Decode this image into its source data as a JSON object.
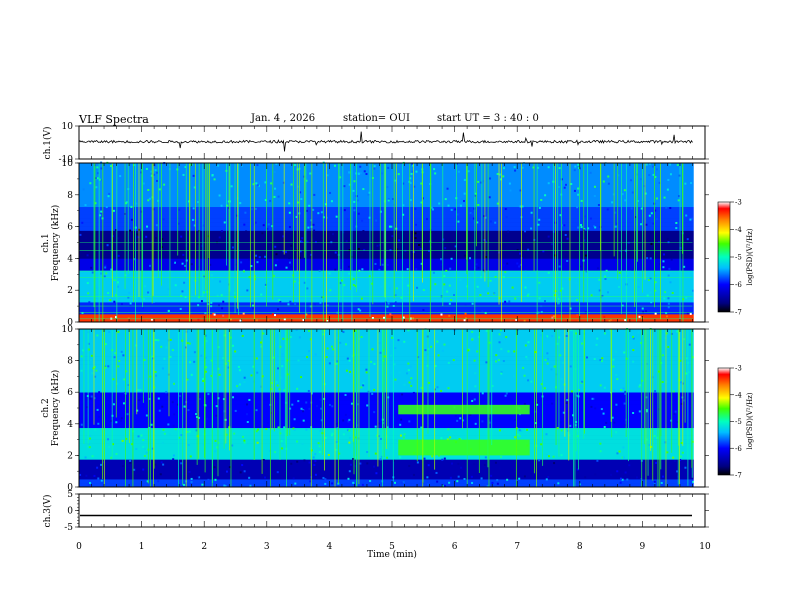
{
  "header": {
    "title": "VLF Spectra",
    "date": "Jan. 4 , 2026",
    "station": "station= OUI",
    "start": "start UT = 3 : 40 : 0"
  },
  "chart_data": [
    {
      "type": "line",
      "ylabel": "ch.1(V)",
      "ylim": [
        -10,
        10
      ],
      "yticks": [
        "10",
        "-10"
      ],
      "xlim": [
        0,
        10
      ],
      "series": [
        {
          "values_summary": "noisy trace near ~0 V with occasional spikes"
        }
      ]
    },
    {
      "type": "heatmap",
      "ylabel_lines": [
        "ch.1",
        "Frequency (kHz)"
      ],
      "xlim": [
        0,
        10
      ],
      "ylim": [
        0,
        10
      ],
      "yticks": [
        "0",
        "2",
        "4",
        "6",
        "8",
        "10"
      ],
      "colorbar": {
        "label": "log(PSD)(V²/Hz)",
        "range": [
          -7,
          -3
        ],
        "ticks": [
          "-3",
          "-4",
          "-5",
          "-6",
          "-7"
        ]
      },
      "features": {
        "bright_bands_khz": [
          [
            1.4,
            3.2
          ],
          [
            6.0,
            7.0
          ]
        ],
        "dark_band_khz": [
          4.0,
          5.8
        ],
        "lines_khz": [
          0.2,
          0.6,
          1.0,
          1.6,
          2.8,
          3.2,
          4.5,
          5.0
        ]
      }
    },
    {
      "type": "heatmap",
      "ylabel_lines": [
        "ch.2",
        "Frequency (kHz)"
      ],
      "xlim": [
        0,
        10
      ],
      "ylim": [
        0,
        10
      ],
      "yticks": [
        "0",
        "2",
        "4",
        "6",
        "8",
        "10"
      ],
      "colorbar": {
        "label": "log(PSD)(V²/Hz)",
        "range": [
          -7,
          -3
        ],
        "ticks": [
          "-3",
          "-4",
          "-5",
          "-6",
          "-7"
        ]
      },
      "features": {
        "bright_bands_khz": [
          [
            1.8,
            3.8
          ],
          [
            6.0,
            10.0
          ]
        ],
        "event_blocks": [
          {
            "t": [
              5.1,
              7.2
            ],
            "f": [
              2.0,
              3.0
            ]
          },
          {
            "t": [
              5.1,
              7.2
            ],
            "f": [
              4.6,
              5.2
            ]
          }
        ]
      }
    },
    {
      "type": "line",
      "ylabel": "ch.3(V)",
      "ylim": [
        -5,
        5
      ],
      "yticks": [
        "5",
        "0",
        "-5"
      ],
      "xlim": [
        0,
        10
      ],
      "xlabel": "Time (min)",
      "xticks": [
        "0",
        "1",
        "2",
        "3",
        "4",
        "5",
        "6",
        "7",
        "8",
        "9",
        "10"
      ],
      "series": [
        {
          "values_summary": "flat line at about -1.5 V"
        }
      ]
    }
  ]
}
